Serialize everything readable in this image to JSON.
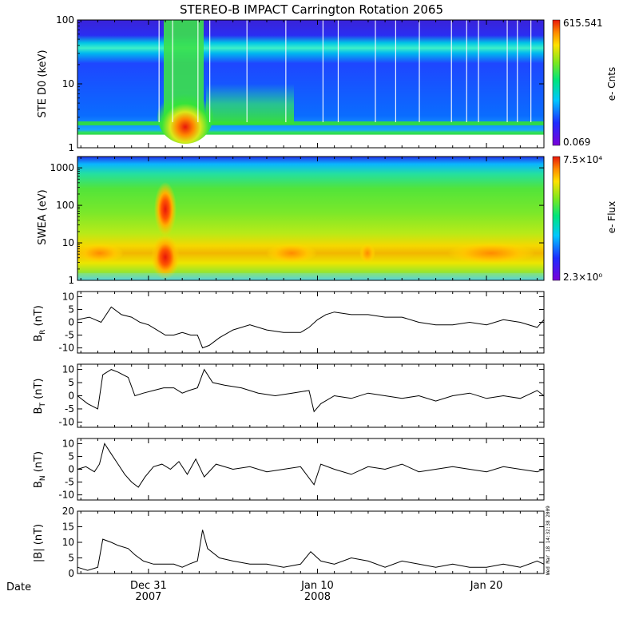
{
  "title": "STEREO-B IMPACT Carrington Rotation 2065",
  "timestamp": "Wed Mar 18 14:32:38 2009",
  "date_label": "Date",
  "time_axis": {
    "ticks": [
      {
        "label": "Dec 31",
        "year": "2007",
        "day": 0
      },
      {
        "label": "Jan 10",
        "year": "2008",
        "day": 10
      },
      {
        "label": "Jan 20",
        "year": "",
        "day": 20
      }
    ],
    "range_days": [
      -4.2,
      23.4
    ]
  },
  "colors": {
    "line": "#000000",
    "frame": "#000000",
    "background": "#ffffff"
  },
  "chart_data": [
    {
      "type": "heatmap",
      "name": "ste",
      "ylabel": "STE D0 (keV)",
      "ylog": true,
      "ylim": [
        1,
        100
      ],
      "yticks": [
        "1",
        "10",
        "100"
      ],
      "yticks_values": [
        1,
        10,
        100
      ],
      "colorbar": {
        "label": "e- Cnts",
        "max": "615.541",
        "min": "0.069"
      }
    },
    {
      "type": "heatmap",
      "name": "swea",
      "ylabel": "SWEA (eV)",
      "ylog": true,
      "ylim": [
        1,
        2000
      ],
      "yticks": [
        "1",
        "10",
        "100",
        "1000"
      ],
      "yticks_values": [
        1,
        10,
        100,
        1000
      ],
      "colorbar": {
        "label": "e- Flux",
        "max": "7.5×10⁴",
        "min": "2.3×10⁰"
      }
    },
    {
      "type": "line",
      "name": "br",
      "ylabel": "B_R (nT)",
      "ylim": [
        -12,
        12
      ],
      "yticks": [
        "-10",
        "-5",
        "0",
        "5",
        "10"
      ],
      "yticks_values": [
        -10,
        -5,
        0,
        5,
        10
      ],
      "x": [
        -4.2,
        -3.5,
        -2.8,
        -2.2,
        -1.6,
        -1.0,
        -0.5,
        0.0,
        0.5,
        1.0,
        1.5,
        2.0,
        2.5,
        2.9,
        3.2,
        3.6,
        4.2,
        5.0,
        6.0,
        7.0,
        8.0,
        9.0,
        9.5,
        10.0,
        10.5,
        11.0,
        12.0,
        13.0,
        14.0,
        15.0,
        16.0,
        17.0,
        18.0,
        19.0,
        20.0,
        21.0,
        22.0,
        23.0,
        23.4
      ],
      "values": [
        1,
        2,
        0,
        6,
        3,
        2,
        0,
        -1,
        -3,
        -5,
        -5,
        -4,
        -5,
        -5,
        -10,
        -9,
        -6,
        -3,
        -1,
        -3,
        -4,
        -4,
        -2,
        1,
        3,
        4,
        3,
        3,
        2,
        2,
        0,
        -1,
        -1,
        0,
        -1,
        1,
        0,
        -2,
        1
      ]
    },
    {
      "type": "line",
      "name": "bt",
      "ylabel": "B_T (nT)",
      "ylim": [
        -12,
        12
      ],
      "yticks": [
        "-10",
        "-5",
        "0",
        "5",
        "10"
      ],
      "yticks_values": [
        -10,
        -5,
        0,
        5,
        10
      ],
      "x": [
        -4.2,
        -3.6,
        -3.0,
        -2.7,
        -2.2,
        -1.8,
        -1.2,
        -0.8,
        -0.3,
        0.3,
        0.9,
        1.5,
        2.0,
        2.4,
        2.9,
        3.3,
        3.8,
        4.5,
        5.5,
        6.5,
        7.5,
        8.5,
        9.5,
        9.8,
        10.2,
        11.0,
        12.0,
        13.0,
        14.0,
        15.0,
        16.0,
        17.0,
        18.0,
        19.0,
        20.0,
        21.0,
        22.0,
        23.0,
        23.4
      ],
      "values": [
        0,
        -3,
        -5,
        8,
        10,
        9,
        7,
        0,
        1,
        2,
        3,
        3,
        1,
        2,
        3,
        10,
        5,
        4,
        3,
        1,
        0,
        1,
        2,
        -6,
        -3,
        0,
        -1,
        1,
        0,
        -1,
        0,
        -2,
        0,
        1,
        -1,
        0,
        -1,
        2,
        0
      ]
    },
    {
      "type": "line",
      "name": "bn",
      "ylabel": "B_N (nT)",
      "ylim": [
        -12,
        12
      ],
      "yticks": [
        "-10",
        "-5",
        "0",
        "5",
        "10"
      ],
      "yticks_values": [
        -10,
        -5,
        0,
        5,
        10
      ],
      "x": [
        -4.2,
        -3.7,
        -3.2,
        -2.9,
        -2.6,
        -2.2,
        -1.8,
        -1.4,
        -1.0,
        -0.6,
        -0.2,
        0.3,
        0.8,
        1.3,
        1.8,
        2.3,
        2.8,
        3.3,
        4.0,
        5.0,
        6.0,
        7.0,
        8.0,
        9.0,
        9.8,
        10.2,
        11.0,
        12.0,
        13.0,
        14.0,
        15.0,
        16.0,
        17.0,
        18.0,
        19.0,
        20.0,
        21.0,
        22.0,
        23.0,
        23.4
      ],
      "values": [
        0,
        1,
        -1,
        2,
        10,
        6,
        2,
        -2,
        -5,
        -7,
        -3,
        1,
        2,
        0,
        3,
        -2,
        4,
        -3,
        2,
        0,
        1,
        -1,
        0,
        1,
        -6,
        2,
        0,
        -2,
        1,
        0,
        2,
        -1,
        0,
        1,
        0,
        -1,
        1,
        0,
        -1,
        0
      ]
    },
    {
      "type": "line",
      "name": "bmag",
      "ylabel": "|B| (nT)",
      "ylim": [
        0,
        20
      ],
      "yticks": [
        "0",
        "5",
        "10",
        "15",
        "20"
      ],
      "yticks_values": [
        0,
        5,
        10,
        15,
        20
      ],
      "x": [
        -4.2,
        -3.6,
        -3.0,
        -2.7,
        -2.2,
        -1.8,
        -1.2,
        -0.8,
        -0.3,
        0.3,
        0.9,
        1.5,
        2.0,
        2.4,
        2.9,
        3.2,
        3.5,
        4.2,
        5.0,
        6.0,
        7.0,
        8.0,
        9.0,
        9.6,
        10.2,
        11.0,
        12.0,
        13.0,
        14.0,
        15.0,
        16.0,
        17.0,
        18.0,
        19.0,
        20.0,
        21.0,
        22.0,
        23.0,
        23.4
      ],
      "values": [
        2,
        1,
        2,
        11,
        10,
        9,
        8,
        6,
        4,
        3,
        3,
        3,
        2,
        3,
        4,
        14,
        8,
        5,
        4,
        3,
        3,
        2,
        3,
        7,
        4,
        3,
        5,
        4,
        2,
        4,
        3,
        2,
        3,
        2,
        2,
        3,
        2,
        4,
        3
      ]
    }
  ]
}
